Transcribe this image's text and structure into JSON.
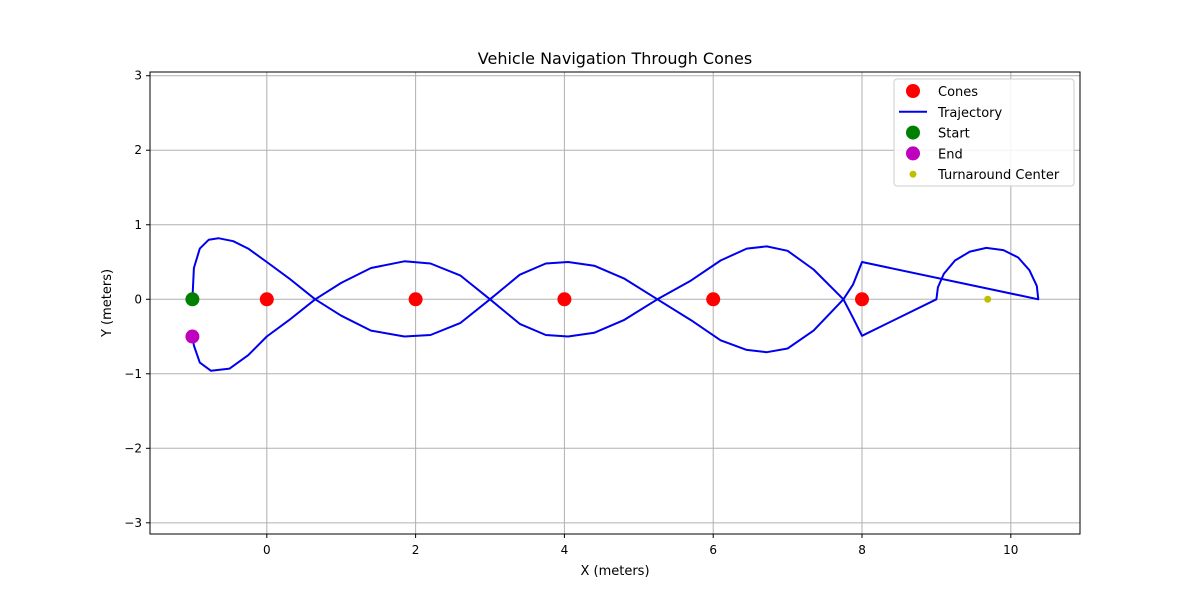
{
  "chart_data": {
    "type": "scatter",
    "title": "Vehicle Navigation Through Cones",
    "xlabel": "X (meters)",
    "ylabel": "Y (meters)",
    "xlim": [
      -1.57,
      10.93
    ],
    "ylim": [
      -3.15,
      3.05
    ],
    "xticks": [
      0,
      2,
      4,
      6,
      8,
      10
    ],
    "yticks": [
      -3,
      -2,
      -1,
      0,
      1,
      2,
      3
    ],
    "grid": true,
    "legend_position": "top-right",
    "series": [
      {
        "name": "Cones",
        "kind": "marker",
        "color": "#ff0000",
        "points": [
          [
            0,
            0
          ],
          [
            2,
            0
          ],
          [
            4,
            0
          ],
          [
            6,
            0
          ],
          [
            8,
            0
          ]
        ]
      },
      {
        "name": "Trajectory",
        "kind": "line",
        "color": "#0000ee",
        "points": [
          [
            -1.0,
            0.0
          ],
          [
            -0.98,
            0.42
          ],
          [
            -0.9,
            0.68
          ],
          [
            -0.78,
            0.8
          ],
          [
            -0.65,
            0.82
          ],
          [
            -0.45,
            0.78
          ],
          [
            -0.25,
            0.68
          ],
          [
            0.0,
            0.5
          ],
          [
            0.3,
            0.28
          ],
          [
            0.65,
            0.0
          ],
          [
            1.0,
            0.22
          ],
          [
            1.4,
            0.42
          ],
          [
            1.85,
            0.51
          ],
          [
            2.2,
            0.48
          ],
          [
            2.6,
            0.32
          ],
          [
            3.0,
            0.0
          ],
          [
            3.4,
            0.33
          ],
          [
            3.75,
            0.48
          ],
          [
            4.05,
            0.5
          ],
          [
            4.4,
            0.45
          ],
          [
            4.8,
            0.28
          ],
          [
            5.25,
            0.0
          ],
          [
            5.7,
            0.25
          ],
          [
            6.1,
            0.52
          ],
          [
            6.45,
            0.68
          ],
          [
            6.72,
            0.71
          ],
          [
            7.0,
            0.65
          ],
          [
            7.35,
            0.4
          ],
          [
            7.75,
            0.0
          ],
          [
            7.88,
            0.2
          ],
          [
            8.0,
            0.5
          ],
          [
            10.37,
            0.0
          ],
          [
            10.35,
            0.18
          ],
          [
            10.25,
            0.39
          ],
          [
            10.1,
            0.56
          ],
          [
            9.9,
            0.66
          ],
          [
            9.67,
            0.69
          ],
          [
            9.45,
            0.64
          ],
          [
            9.25,
            0.52
          ],
          [
            9.1,
            0.34
          ],
          [
            9.02,
            0.16
          ],
          [
            9.0,
            0.0
          ],
          [
            8.0,
            -0.49
          ],
          [
            7.88,
            -0.25
          ],
          [
            7.75,
            0.0
          ],
          [
            7.35,
            -0.42
          ],
          [
            7.0,
            -0.66
          ],
          [
            6.72,
            -0.71
          ],
          [
            6.45,
            -0.68
          ],
          [
            6.1,
            -0.55
          ],
          [
            5.7,
            -0.28
          ],
          [
            5.25,
            0.0
          ],
          [
            4.8,
            -0.28
          ],
          [
            4.4,
            -0.45
          ],
          [
            4.05,
            -0.5
          ],
          [
            3.75,
            -0.48
          ],
          [
            3.4,
            -0.33
          ],
          [
            3.0,
            0.0
          ],
          [
            2.6,
            -0.32
          ],
          [
            2.2,
            -0.48
          ],
          [
            1.85,
            -0.5
          ],
          [
            1.4,
            -0.42
          ],
          [
            1.0,
            -0.22
          ],
          [
            0.65,
            0.0
          ],
          [
            0.3,
            -0.28
          ],
          [
            0.0,
            -0.5
          ],
          [
            -0.25,
            -0.75
          ],
          [
            -0.5,
            -0.93
          ],
          [
            -0.75,
            -0.96
          ],
          [
            -0.9,
            -0.85
          ],
          [
            -0.98,
            -0.62
          ],
          [
            -1.0,
            -0.5
          ]
        ]
      },
      {
        "name": "Start",
        "kind": "marker",
        "color": "#008000",
        "points": [
          [
            -1,
            0
          ]
        ]
      },
      {
        "name": "End",
        "kind": "marker",
        "color": "#bf00bf",
        "points": [
          [
            -1,
            -0.5
          ]
        ]
      },
      {
        "name": "Turnaround Center",
        "kind": "small-marker",
        "color": "#bfbf00",
        "points": [
          [
            9.69,
            0
          ]
        ]
      }
    ]
  }
}
